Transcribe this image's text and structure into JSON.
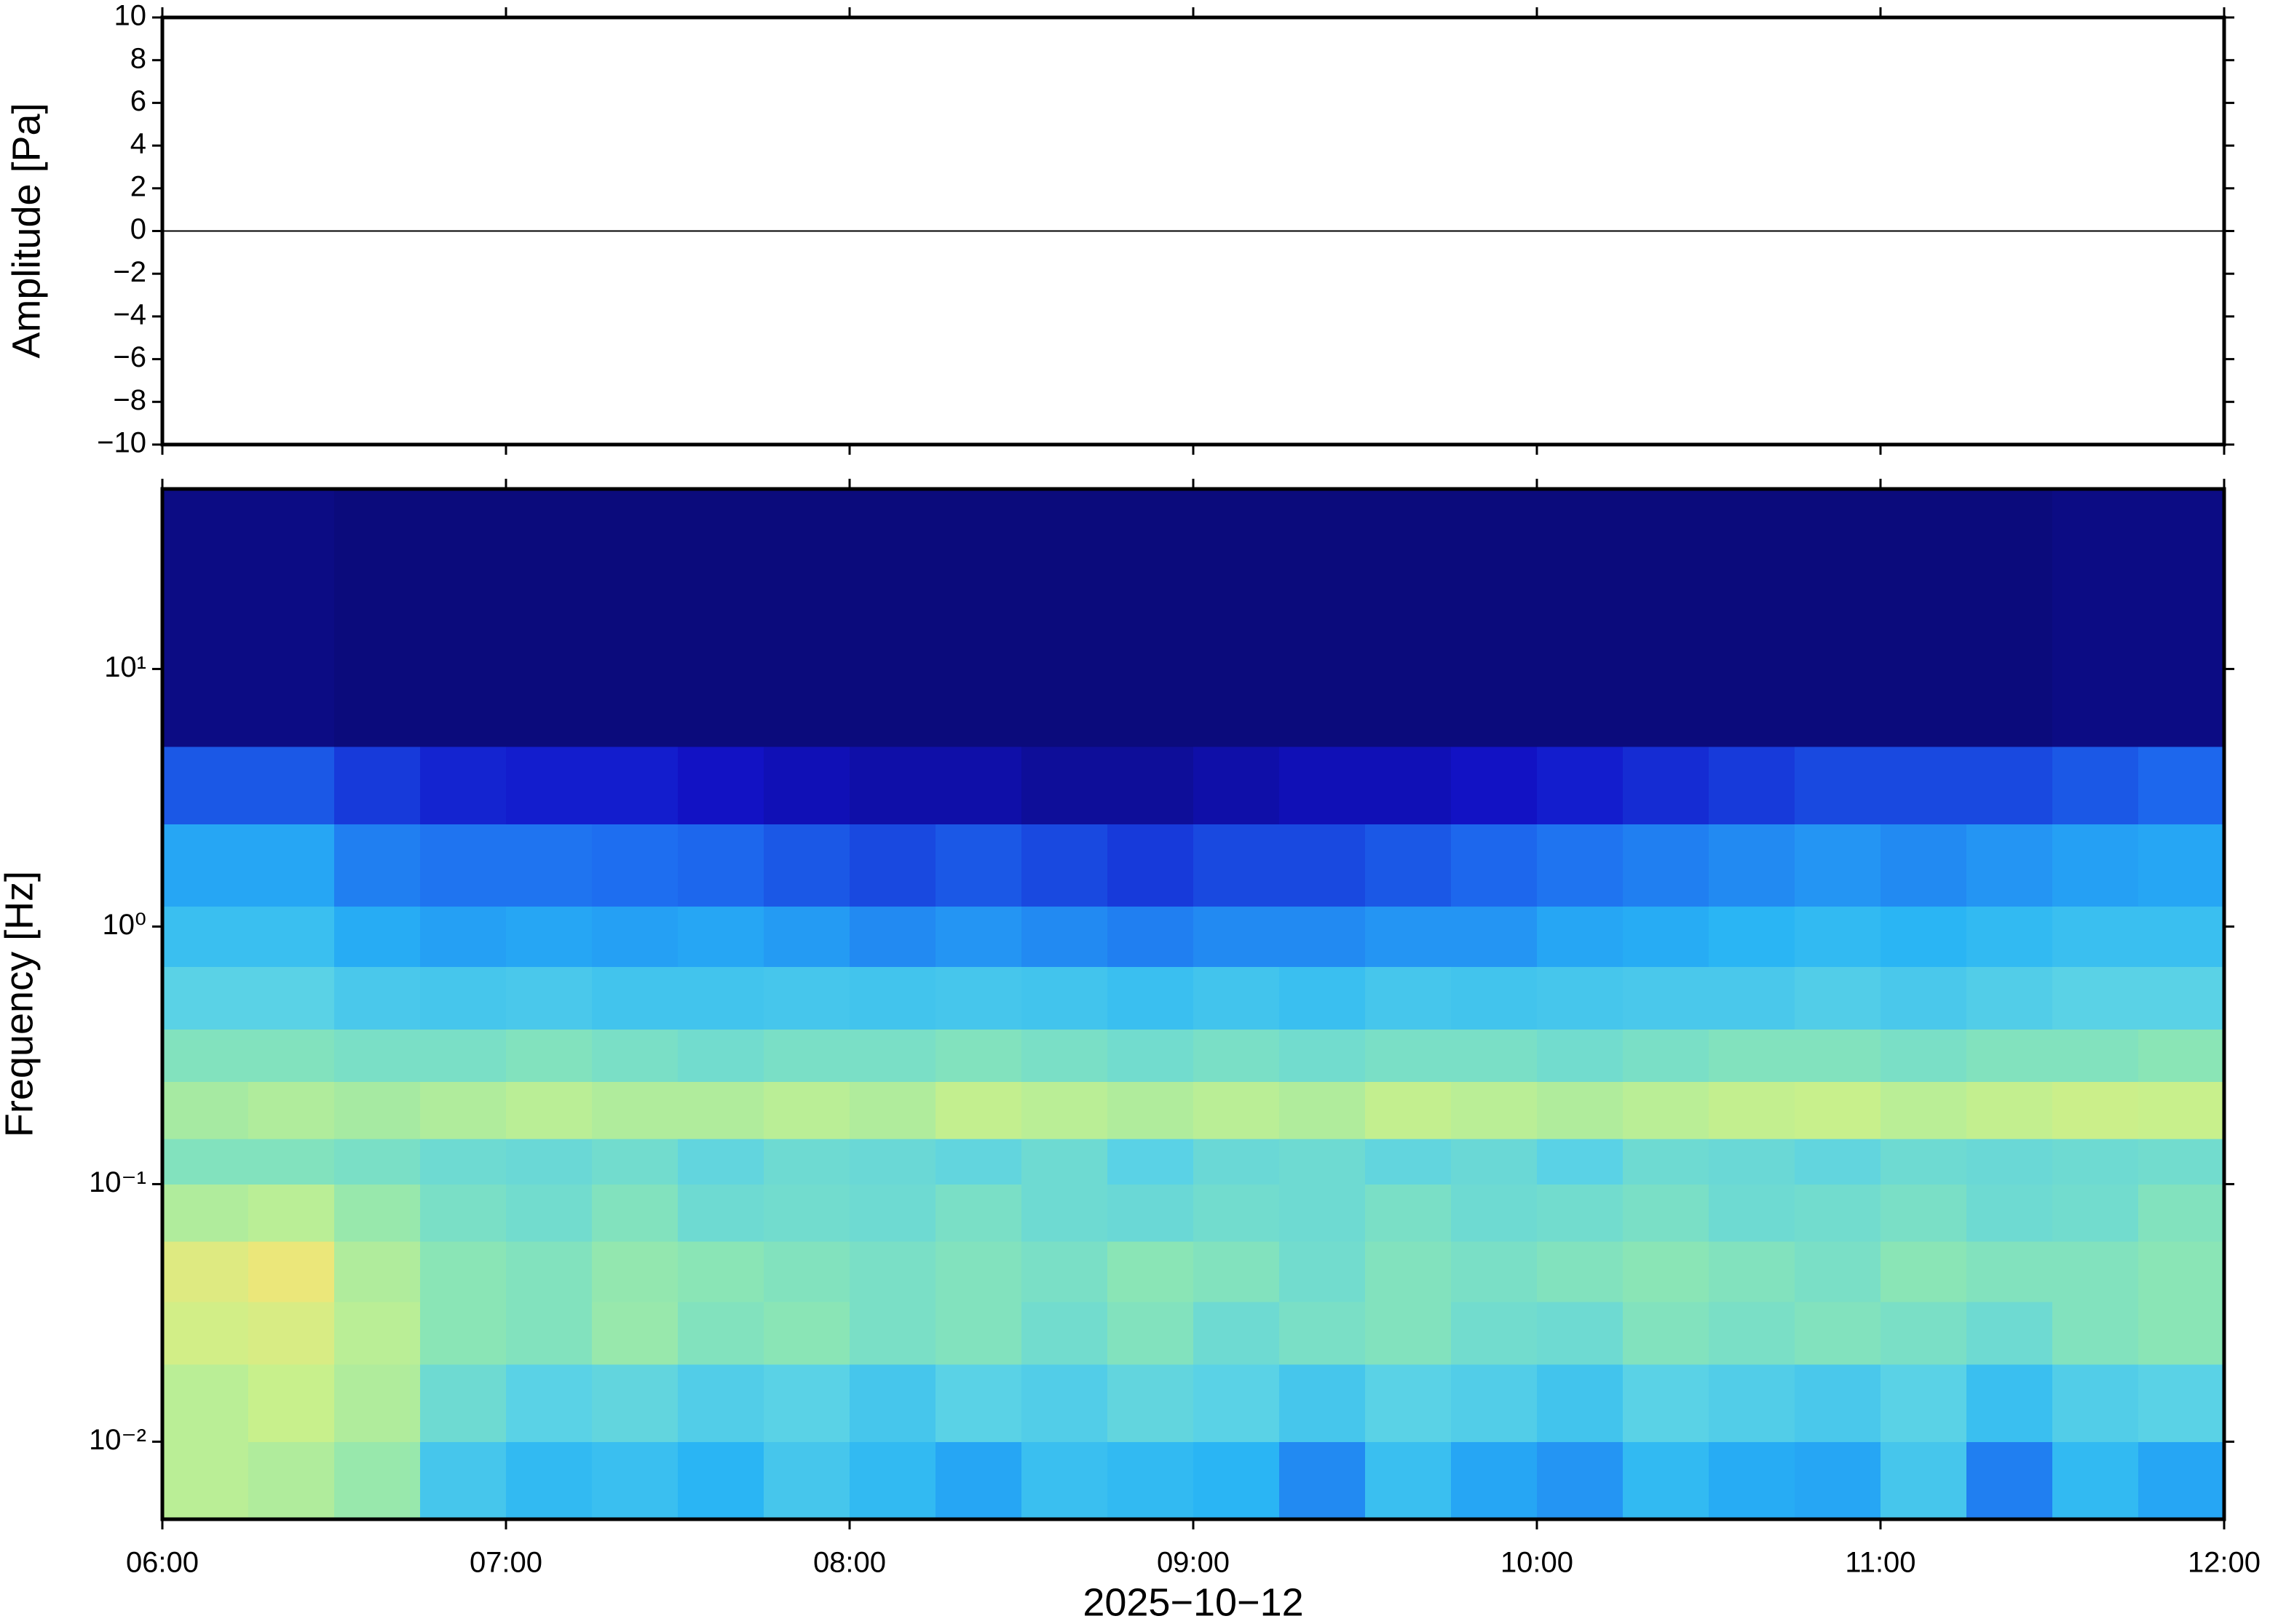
{
  "chart_data": [
    {
      "type": "line",
      "ylabel": "Amplitude [Pa]",
      "xlim": [
        "06:00",
        "12:00"
      ],
      "ylim": [
        -10,
        10
      ],
      "yticks": [
        {
          "value": -10,
          "label": "−10"
        },
        {
          "value": -8,
          "label": "−8"
        },
        {
          "value": -6,
          "label": "−6"
        },
        {
          "value": -4,
          "label": "−4"
        },
        {
          "value": -2,
          "label": "−2"
        },
        0,
        2,
        4,
        6,
        8,
        10
      ],
      "x": [
        "06:00",
        "12:00"
      ],
      "series": [
        {
          "color": "#000000",
          "values": [
            0,
            0
          ]
        }
      ]
    },
    {
      "type": "heatmap",
      "ylabel": "Frequency [Hz]",
      "xlabel": "2025−10−12",
      "xlim": [
        "06:00",
        "12:00"
      ],
      "xticks": [
        "06:00",
        "07:00",
        "08:00",
        "09:00",
        "10:00",
        "11:00",
        "12:00"
      ],
      "yscale": "log",
      "ylim": [
        0.005,
        50
      ],
      "yticks": [
        {
          "value": 0.01,
          "label": "10⁻²"
        },
        {
          "value": 0.1,
          "label": "10⁻¹"
        },
        {
          "value": 1,
          "label": "10⁰"
        },
        {
          "value": 10,
          "label": "10¹"
        }
      ],
      "y_bins": [
        0.005,
        0.01,
        0.02,
        0.035,
        0.06,
        0.1,
        0.15,
        0.25,
        0.4,
        0.7,
        1.2,
        2.5,
        5,
        50
      ],
      "colormap": [
        "#0a0a6e",
        "#1212c8",
        "#1e6ef0",
        "#28b4f5",
        "#5ad2e6",
        "#8ce6b4",
        "#c8f08c",
        "#f0e678",
        "#f0a050"
      ],
      "z": [
        [
          0.72,
          0.7,
          0.65,
          0.45,
          0.4,
          0.42,
          0.38,
          0.45,
          0.4,
          0.35,
          0.42,
          0.4,
          0.38,
          0.3,
          0.42,
          0.35,
          0.32,
          0.4,
          0.36,
          0.35,
          0.45,
          0.28,
          0.4,
          0.35
        ],
        [
          0.72,
          0.75,
          0.7,
          0.55,
          0.5,
          0.52,
          0.48,
          0.5,
          0.45,
          0.5,
          0.48,
          0.52,
          0.5,
          0.45,
          0.5,
          0.48,
          0.44,
          0.5,
          0.48,
          0.46,
          0.5,
          0.42,
          0.48,
          0.5
        ],
        [
          0.78,
          0.8,
          0.72,
          0.62,
          0.6,
          0.65,
          0.6,
          0.62,
          0.58,
          0.6,
          0.56,
          0.6,
          0.55,
          0.58,
          0.6,
          0.56,
          0.55,
          0.6,
          0.58,
          0.6,
          0.58,
          0.55,
          0.6,
          0.62
        ],
        [
          0.82,
          0.86,
          0.7,
          0.62,
          0.6,
          0.64,
          0.62,
          0.6,
          0.58,
          0.6,
          0.58,
          0.62,
          0.6,
          0.56,
          0.6,
          0.58,
          0.6,
          0.62,
          0.6,
          0.58,
          0.62,
          0.6,
          0.6,
          0.62
        ],
        [
          0.7,
          0.72,
          0.65,
          0.58,
          0.56,
          0.6,
          0.55,
          0.56,
          0.55,
          0.58,
          0.55,
          0.54,
          0.56,
          0.55,
          0.58,
          0.55,
          0.56,
          0.58,
          0.55,
          0.56,
          0.58,
          0.55,
          0.56,
          0.6
        ],
        [
          0.6,
          0.6,
          0.58,
          0.55,
          0.54,
          0.56,
          0.52,
          0.55,
          0.54,
          0.52,
          0.55,
          0.5,
          0.54,
          0.55,
          0.52,
          0.54,
          0.5,
          0.55,
          0.54,
          0.52,
          0.55,
          0.54,
          0.55,
          0.56
        ],
        [
          0.68,
          0.7,
          0.68,
          0.7,
          0.72,
          0.7,
          0.7,
          0.72,
          0.7,
          0.74,
          0.72,
          0.7,
          0.72,
          0.7,
          0.74,
          0.72,
          0.7,
          0.72,
          0.74,
          0.75,
          0.72,
          0.74,
          0.76,
          0.75
        ],
        [
          0.6,
          0.6,
          0.58,
          0.58,
          0.6,
          0.58,
          0.56,
          0.58,
          0.58,
          0.6,
          0.58,
          0.56,
          0.58,
          0.56,
          0.58,
          0.58,
          0.56,
          0.58,
          0.6,
          0.6,
          0.58,
          0.6,
          0.6,
          0.62
        ],
        [
          0.5,
          0.5,
          0.46,
          0.45,
          0.46,
          0.44,
          0.44,
          0.45,
          0.44,
          0.45,
          0.44,
          0.42,
          0.44,
          0.42,
          0.45,
          0.44,
          0.45,
          0.46,
          0.46,
          0.48,
          0.46,
          0.48,
          0.5,
          0.5
        ],
        [
          0.42,
          0.42,
          0.36,
          0.34,
          0.35,
          0.34,
          0.35,
          0.33,
          0.3,
          0.32,
          0.3,
          0.28,
          0.3,
          0.3,
          0.32,
          0.32,
          0.35,
          0.36,
          0.38,
          0.4,
          0.38,
          0.4,
          0.42,
          0.42
        ],
        [
          0.35,
          0.35,
          0.28,
          0.26,
          0.26,
          0.25,
          0.24,
          0.22,
          0.2,
          0.22,
          0.2,
          0.18,
          0.2,
          0.2,
          0.22,
          0.24,
          0.26,
          0.28,
          0.3,
          0.32,
          0.3,
          0.32,
          0.34,
          0.35
        ],
        [
          0.22,
          0.22,
          0.18,
          0.15,
          0.14,
          0.14,
          0.12,
          0.1,
          0.08,
          0.08,
          0.06,
          0.06,
          0.08,
          0.1,
          0.1,
          0.12,
          0.14,
          0.16,
          0.18,
          0.2,
          0.2,
          0.2,
          0.22,
          0.24
        ],
        [
          0.03,
          0.03,
          0.02,
          0.02,
          0.02,
          0.02,
          0.02,
          0.02,
          0.02,
          0.02,
          0.02,
          0.02,
          0.02,
          0.02,
          0.02,
          0.02,
          0.02,
          0.02,
          0.02,
          0.02,
          0.02,
          0.02,
          0.03,
          0.03
        ]
      ]
    }
  ]
}
